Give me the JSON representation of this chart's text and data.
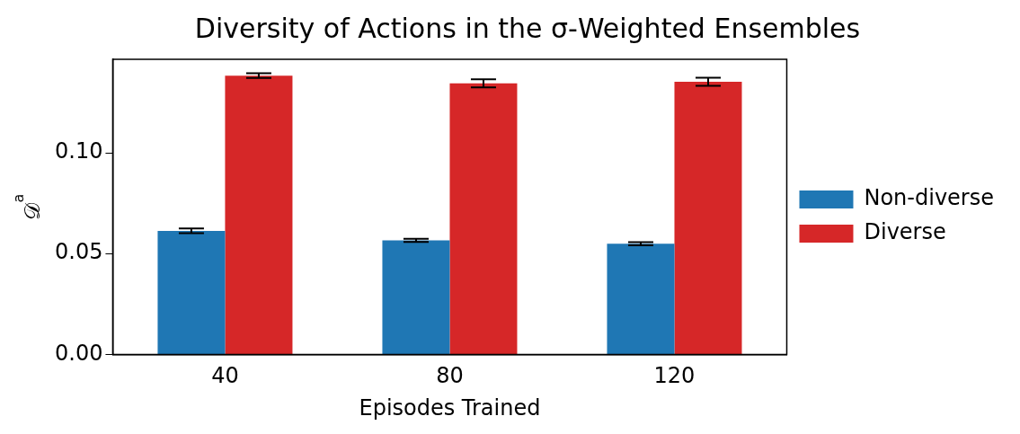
{
  "chart_data": {
    "type": "bar",
    "title": "Diversity of Actions in the σ-Weighted Ensembles",
    "xlabel": "Episodes Trained",
    "ylabel": "𝒟$^{a}$",
    "categories": [
      "40",
      "80",
      "120"
    ],
    "series": [
      {
        "name": "Non-diverse",
        "color": "#1f77b4",
        "values": [
          0.0613,
          0.0566,
          0.0549
        ],
        "errors": [
          0.0012,
          0.0008,
          0.0008
        ]
      },
      {
        "name": "Diverse",
        "color": "#d62728",
        "values": [
          0.1383,
          0.1345,
          0.1353
        ],
        "errors": [
          0.0012,
          0.002,
          0.002
        ]
      }
    ],
    "ylim": [
      0,
      0.1464
    ],
    "yticks": [
      {
        "value": 0,
        "label": "0.00"
      },
      {
        "value": 0.05,
        "label": "0.05"
      },
      {
        "value": 0.1,
        "label": "0.10"
      }
    ],
    "grid": false,
    "legend": "right"
  }
}
